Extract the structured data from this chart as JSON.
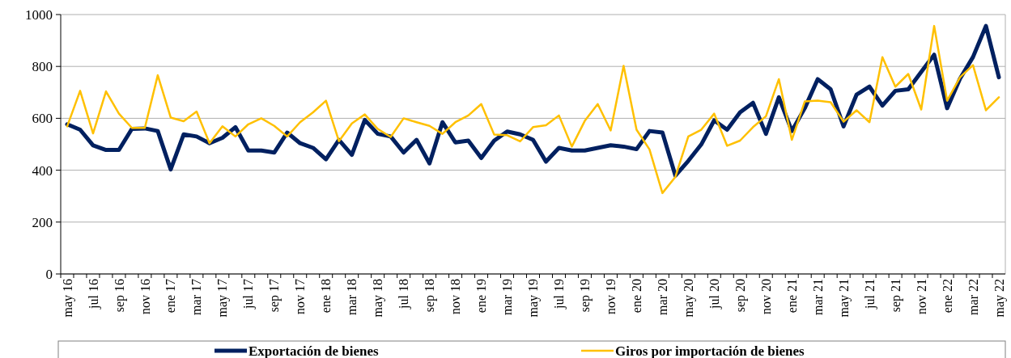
{
  "chart_data": {
    "type": "line",
    "categories": [
      "may 16",
      null,
      "jul 16",
      null,
      "sep 16",
      null,
      "nov 16",
      null,
      "ene 17",
      null,
      "mar 17",
      null,
      "may 17",
      null,
      "jul 17",
      null,
      "sep 17",
      null,
      "nov 17",
      null,
      "ene 18",
      null,
      "mar 18",
      null,
      "may 18",
      null,
      "jul 18",
      null,
      "sep 18",
      null,
      "nov 18",
      null,
      "ene 19",
      null,
      "mar 19",
      null,
      "may 19",
      null,
      "jul 19",
      null,
      "sep 19",
      null,
      "nov 19",
      null,
      "ene 20",
      null,
      "mar 20",
      null,
      "may 20",
      null,
      "jul 20",
      null,
      "sep 20",
      null,
      "nov 20",
      null,
      "ene 21",
      null,
      "mar 21",
      null,
      "may 21",
      null,
      "jul 21",
      null,
      "sep 21",
      null,
      "nov 21",
      null,
      "ene 22",
      null,
      "mar 22",
      null,
      "may 22"
    ],
    "series": [
      {
        "name": "Exportación de bienes",
        "color": "#002060",
        "values": [
          577,
          556,
          496,
          478,
          478,
          559,
          561,
          551,
          403,
          538,
          530,
          504,
          525,
          566,
          476,
          476,
          468,
          545,
          504,
          486,
          442,
          517,
          459,
          594,
          540,
          530,
          468,
          517,
          426,
          585,
          507,
          514,
          447,
          514,
          549,
          538,
          517,
          433,
          486,
          476,
          476,
          486,
          496,
          491,
          481,
          551,
          545,
          379,
          436,
          499,
          592,
          556,
          623,
          660,
          540,
          681,
          551,
          639,
          751,
          712,
          569,
          691,
          722,
          649,
          706,
          712,
          779,
          845,
          639,
          753,
          836,
          956,
          758
        ]
      },
      {
        "name": "Giros por importación de bienes",
        "color": "#ffc000",
        "values": [
          569,
          706,
          542,
          704,
          618,
          563,
          563,
          766,
          603,
          589,
          626,
          504,
          569,
          530,
          577,
          600,
          571,
          530,
          585,
          623,
          668,
          512,
          580,
          615,
          559,
          528,
          600,
          585,
          571,
          540,
          585,
          611,
          655,
          537,
          535,
          511,
          566,
          573,
          611,
          491,
          590,
          655,
          553,
          802,
          556,
          480,
          312,
          374,
          530,
          556,
          618,
          494,
          514,
          566,
          608,
          751,
          517,
          665,
          668,
          662,
          587,
          631,
          585,
          836,
          722,
          771,
          634,
          956,
          668,
          758,
          805,
          631,
          681
        ]
      }
    ],
    "ylim": [
      0,
      1000
    ],
    "yticks": [
      0,
      200,
      400,
      600,
      800,
      1000
    ],
    "grid": "y",
    "legend": "bottom",
    "marker": "none",
    "line_style": "solid"
  }
}
